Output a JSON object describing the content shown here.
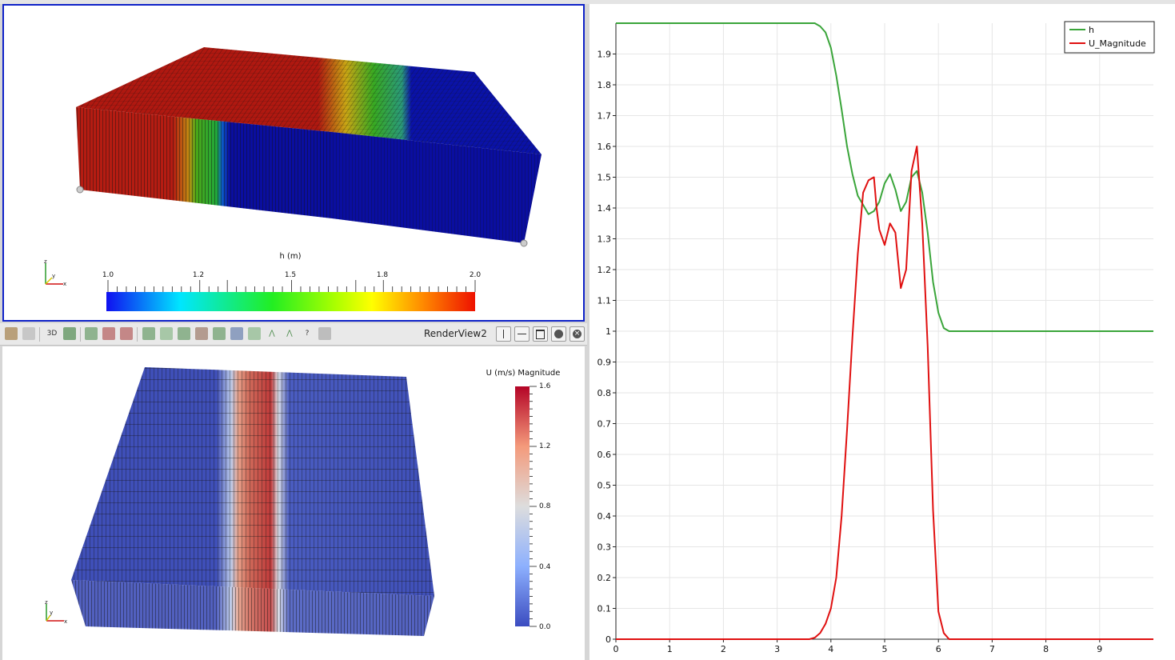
{
  "render_view_1": {
    "colorbar": {
      "title": "h (m)",
      "tick_labels": [
        "1.0",
        "1.2",
        "1.5",
        "1.8",
        "2.0"
      ],
      "range": [
        1.0,
        2.0
      ]
    },
    "axes_labels": [
      "z",
      "y",
      "x"
    ]
  },
  "toolbar": {
    "camera_3d_label": "3D",
    "view_title": "RenderView2",
    "icons": [
      "reset-camera-icon",
      "interaction-icon",
      "3d-toggle",
      "screenshot-icon",
      "select-cells-icon",
      "select-points-icon",
      "select-block-icon",
      "select-frustum-icon",
      "select-polygon-icon",
      "interactive-select-icon",
      "hover-points-icon",
      "hover-cells-icon",
      "grow-selection-icon",
      "shrink-selection-icon",
      "query-icon",
      "clear-selection-icon"
    ],
    "window_buttons": [
      "split-horizontal-icon",
      "split-vertical-icon",
      "maximize-icon",
      "restore-icon",
      "close-icon"
    ]
  },
  "render_view_2": {
    "colorbar": {
      "title": "U (m/s) Magnitude",
      "tick_labels": [
        "1.6",
        "1.2",
        "0.8",
        "0.4",
        "0.0"
      ],
      "range": [
        0.0,
        1.6
      ]
    },
    "axes_labels": [
      "z",
      "y",
      "x"
    ]
  },
  "chart_data": {
    "type": "line",
    "xlim": [
      0,
      10
    ],
    "ylim": [
      0,
      2
    ],
    "x_ticks": [
      "0",
      "1",
      "2",
      "3",
      "4",
      "5",
      "6",
      "7",
      "8",
      "9"
    ],
    "y_ticks": [
      "0",
      "0.1",
      "0.2",
      "0.3",
      "0.4",
      "0.5",
      "0.6",
      "0.7",
      "0.8",
      "0.9",
      "1",
      "1.1",
      "1.2",
      "1.3",
      "1.4",
      "1.5",
      "1.6",
      "1.7",
      "1.8",
      "1.9"
    ],
    "grid": true,
    "legend_position": "top-right",
    "series": [
      {
        "name": "h",
        "color": "#3aa53a",
        "x": [
          0,
          3.7,
          3.8,
          3.9,
          4.0,
          4.1,
          4.2,
          4.3,
          4.4,
          4.5,
          4.6,
          4.7,
          4.8,
          4.9,
          5.0,
          5.1,
          5.2,
          5.3,
          5.4,
          5.5,
          5.6,
          5.7,
          5.8,
          5.9,
          6.0,
          6.1,
          6.2,
          10
        ],
        "y": [
          2.0,
          2.0,
          1.99,
          1.97,
          1.92,
          1.83,
          1.72,
          1.6,
          1.51,
          1.44,
          1.41,
          1.38,
          1.39,
          1.42,
          1.48,
          1.51,
          1.46,
          1.39,
          1.42,
          1.5,
          1.52,
          1.45,
          1.32,
          1.16,
          1.06,
          1.01,
          1.0,
          1.0
        ]
      },
      {
        "name": "U_Magnitude",
        "color": "#e01010",
        "x": [
          0,
          3.6,
          3.7,
          3.8,
          3.9,
          4.0,
          4.1,
          4.2,
          4.3,
          4.4,
          4.5,
          4.6,
          4.7,
          4.8,
          4.85,
          4.9,
          5.0,
          5.1,
          5.2,
          5.3,
          5.4,
          5.5,
          5.6,
          5.7,
          5.8,
          5.9,
          6.0,
          6.1,
          6.2,
          10
        ],
        "y": [
          0,
          0,
          0.005,
          0.02,
          0.05,
          0.1,
          0.2,
          0.4,
          0.68,
          0.98,
          1.25,
          1.45,
          1.49,
          1.5,
          1.4,
          1.33,
          1.28,
          1.35,
          1.32,
          1.14,
          1.2,
          1.52,
          1.6,
          1.35,
          0.95,
          0.42,
          0.09,
          0.02,
          0.0,
          0.0
        ]
      }
    ]
  }
}
